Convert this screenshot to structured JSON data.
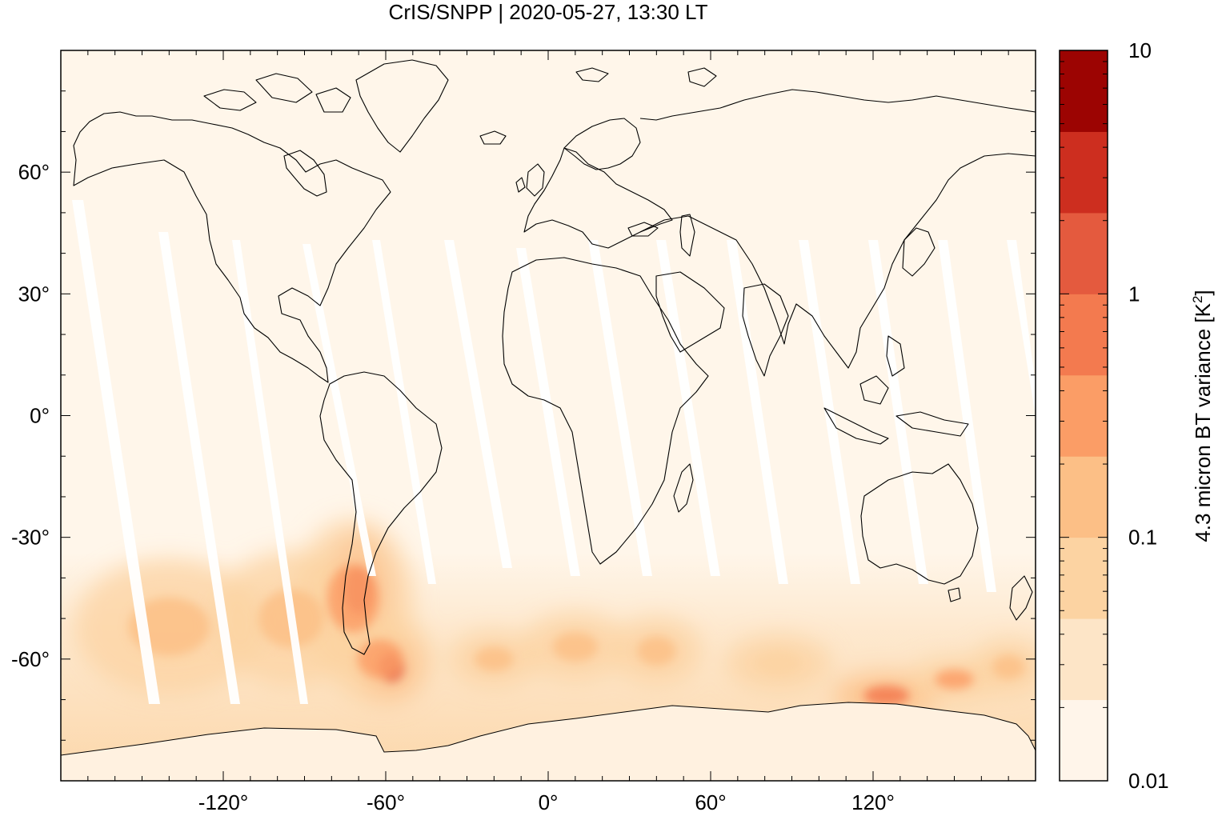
{
  "title": "CrIS/SNPP | 2020-05-27, 13:30 LT",
  "map": {
    "projection": "equirectangular",
    "lon_range": [
      -180,
      180
    ],
    "lat_range": [
      -90,
      90
    ],
    "x_ticks": [
      {
        "value": -120,
        "label": "-120°"
      },
      {
        "value": -60,
        "label": "-60°"
      },
      {
        "value": 0,
        "label": "0°"
      },
      {
        "value": 60,
        "label": "60°"
      },
      {
        "value": 120,
        "label": "120°"
      }
    ],
    "y_ticks": [
      {
        "value": 60,
        "label": "60°"
      },
      {
        "value": 30,
        "label": "30°"
      },
      {
        "value": 0,
        "label": "0°"
      },
      {
        "value": -30,
        "label": "-30°"
      },
      {
        "value": -60,
        "label": "-60°"
      }
    ],
    "background_color": "#fff6ea",
    "gap_color": "#ffffff",
    "coastline_color": "#000000"
  },
  "colorbar": {
    "label_main": "4.3 micron BT variance [K",
    "label_sup": "2",
    "label_end": "]",
    "scale": "log",
    "range": [
      0.01,
      10
    ],
    "tick_labels": [
      {
        "value": 10,
        "label": "10"
      },
      {
        "value": 1,
        "label": "1"
      },
      {
        "value": 0.1,
        "label": "0.1"
      },
      {
        "value": 0.01,
        "label": "0.01"
      }
    ],
    "bands": [
      "#fff5ea",
      "#fde5c7",
      "#fcd3a2",
      "#fcbf86",
      "#fb9d66",
      "#f37a4f",
      "#e45a3e",
      "#cd2e1f",
      "#9c0402"
    ]
  },
  "hotspots": [
    {
      "lon": -70,
      "lat": -43,
      "rx": 9,
      "ry": 10,
      "level": 6
    },
    {
      "lon": -58,
      "lat": -62,
      "rx": 8,
      "ry": 6,
      "level": 6
    },
    {
      "lon": -72,
      "lat": -45,
      "rx": 16,
      "ry": 14,
      "level": 4
    },
    {
      "lon": -62,
      "lat": -60,
      "rx": 14,
      "ry": 8,
      "level": 4
    },
    {
      "lon": -140,
      "lat": -52,
      "rx": 25,
      "ry": 12,
      "level": 3
    },
    {
      "lon": -95,
      "lat": -50,
      "rx": 20,
      "ry": 12,
      "level": 3
    },
    {
      "lon": 125,
      "lat": -69,
      "rx": 14,
      "ry": 4,
      "level": 5
    },
    {
      "lon": 150,
      "lat": -65,
      "rx": 12,
      "ry": 4,
      "level": 4
    },
    {
      "lon": 40,
      "lat": -58,
      "rx": 12,
      "ry": 6,
      "level": 3
    },
    {
      "lon": 10,
      "lat": -57,
      "rx": 14,
      "ry": 6,
      "level": 3
    },
    {
      "lon": -20,
      "lat": -60,
      "rx": 12,
      "ry": 5,
      "level": 3
    },
    {
      "lon": 85,
      "lat": -61,
      "rx": 14,
      "ry": 5,
      "level": 2
    },
    {
      "lon": 170,
      "lat": -62,
      "rx": 10,
      "ry": 5,
      "level": 3
    }
  ]
}
